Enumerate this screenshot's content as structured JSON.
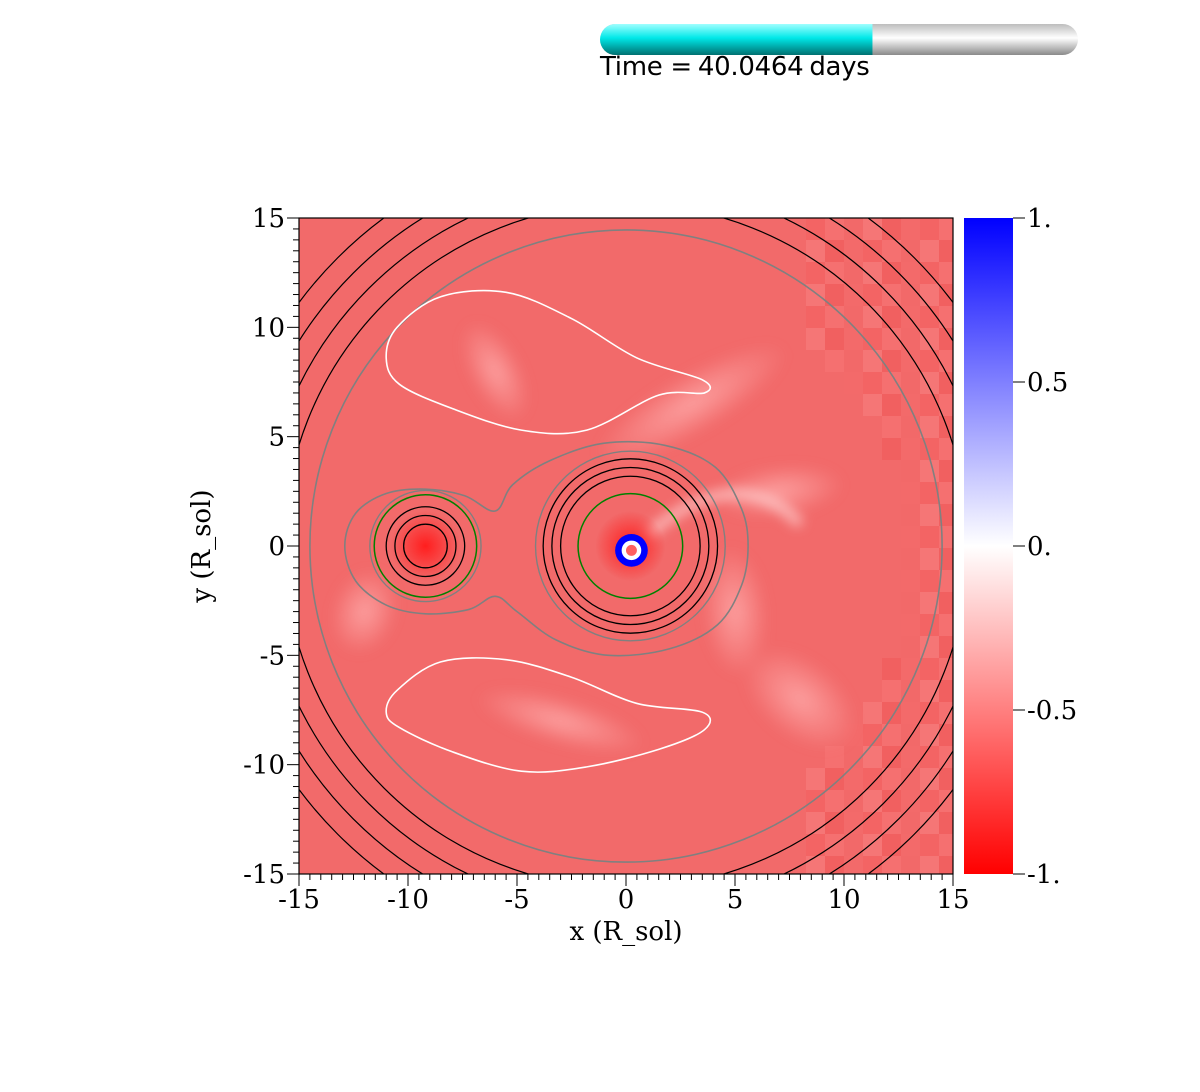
{
  "time_indicator": {
    "prefix": "Time =",
    "value": "40.0464",
    "unit": "days",
    "progress_fraction": 0.57
  },
  "colors": {
    "progress_fill": "#00e0e0",
    "progress_track": "#d8d8d8",
    "background_field": "#f26a6a",
    "colormap_low": "#ff0000",
    "colormap_mid": "#ffffff",
    "colormap_high": "#0000ff",
    "contour_black": "#000000",
    "contour_gray": "#808080",
    "contour_white": "#ffffff",
    "contour_green": "#008000"
  },
  "chart_data": {
    "type": "heatmap",
    "xlabel": "x (R_sol)",
    "ylabel": "y (R_sol)",
    "xlim": [
      -15,
      15
    ],
    "ylim": [
      -15,
      15
    ],
    "x_ticks": [
      -15,
      -10,
      -5,
      0,
      5,
      10,
      15
    ],
    "y_ticks": [
      -15,
      -10,
      -5,
      0,
      5,
      10,
      15
    ],
    "x_tick_labels": [
      "-15",
      "-10",
      "-5",
      "0",
      "5",
      "10",
      "15"
    ],
    "y_tick_labels": [
      "-15",
      "-10",
      "-5",
      "0",
      "5",
      "10",
      "15"
    ],
    "colorbar": {
      "range": [
        -1,
        1
      ],
      "ticks": [
        1,
        0.5,
        0,
        -0.5,
        -1
      ],
      "tick_labels": [
        "1.",
        "0.5",
        "0.",
        "-0.5",
        "-1."
      ]
    },
    "stars": [
      {
        "name": "companion",
        "x": -9.2,
        "y": 0.0,
        "green_radius": 2.35,
        "black_radii": [
          1.0,
          1.4,
          1.8
        ]
      },
      {
        "name": "primary",
        "x": 0.2,
        "y": 0.0,
        "green_radius": 2.4,
        "black_radii": [
          3.2,
          3.6,
          4.0
        ]
      }
    ],
    "outer_black_circles": {
      "center": [
        0,
        0
      ],
      "radii": [
        15.7,
        16.7,
        17.7,
        18.7
      ]
    },
    "outer_gray_circle": {
      "center": [
        0,
        0
      ],
      "radius": 14.5
    },
    "gray_contour_peanut": [
      [
        -9.2,
        2.6
      ],
      [
        -7.4,
        2.3
      ],
      [
        -6.0,
        1.6
      ],
      [
        -5.2,
        2.8
      ],
      [
        -3.5,
        3.9
      ],
      [
        -1.0,
        4.7
      ],
      [
        1.8,
        4.6
      ],
      [
        4.1,
        3.6
      ],
      [
        5.3,
        1.7
      ],
      [
        5.6,
        0.0
      ],
      [
        5.3,
        -1.8
      ],
      [
        4.2,
        -3.6
      ],
      [
        2.0,
        -4.7
      ],
      [
        -0.8,
        -5.0
      ],
      [
        -3.2,
        -4.3
      ],
      [
        -5.0,
        -3.0
      ],
      [
        -6.0,
        -2.3
      ],
      [
        -7.2,
        -2.9
      ],
      [
        -9.2,
        -3.1
      ],
      [
        -11.0,
        -2.7
      ],
      [
        -12.4,
        -1.6
      ],
      [
        -12.9,
        0.0
      ],
      [
        -12.4,
        1.5
      ],
      [
        -11.0,
        2.4
      ]
    ],
    "white_contour_upper": [
      [
        -10.5,
        10.0
      ],
      [
        -8.5,
        11.4
      ],
      [
        -5.5,
        11.6
      ],
      [
        -2.5,
        10.4
      ],
      [
        0.5,
        8.6
      ],
      [
        3.5,
        7.6
      ],
      [
        3.6,
        7.0
      ],
      [
        1.5,
        6.9
      ],
      [
        -1.8,
        5.3
      ],
      [
        -4.8,
        5.3
      ],
      [
        -8.0,
        6.3
      ],
      [
        -10.4,
        7.4
      ],
      [
        -11.0,
        8.6
      ]
    ],
    "white_contour_lower": [
      [
        -10.5,
        -6.6
      ],
      [
        -8.5,
        -5.3
      ],
      [
        -5.5,
        -5.2
      ],
      [
        -2.5,
        -6.0
      ],
      [
        0.5,
        -7.2
      ],
      [
        3.5,
        -7.6
      ],
      [
        3.6,
        -8.4
      ],
      [
        1.5,
        -9.3
      ],
      [
        -1.8,
        -10.1
      ],
      [
        -4.8,
        -10.3
      ],
      [
        -8.0,
        -9.4
      ],
      [
        -10.4,
        -8.3
      ],
      [
        -11.0,
        -7.6
      ]
    ]
  }
}
